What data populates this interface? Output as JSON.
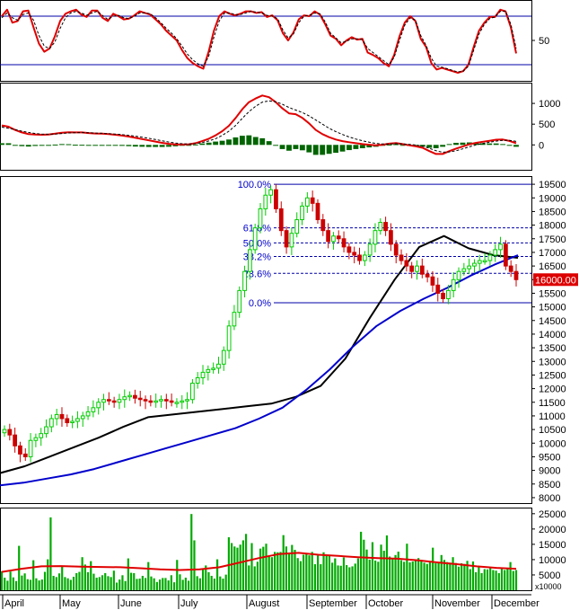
{
  "chart_data": {
    "type": "stock-technical",
    "x_axis": {
      "months": [
        "April",
        "May",
        "June",
        "July",
        "August",
        "September",
        "October",
        "November",
        "December"
      ]
    },
    "panels": {
      "stochastic": {
        "type": "line",
        "ylim": [
          0,
          100
        ],
        "tick_labels": [
          "50"
        ],
        "ref_levels": [
          80,
          20
        ],
        "series": [
          {
            "color": "#e00000",
            "values": [
              80,
              88,
              72,
              74,
              86,
              87,
              66,
              46,
              36,
              40,
              55,
              74,
              83,
              86,
              88,
              82,
              79,
              87,
              87,
              78,
              74,
              83,
              80,
              76,
              77,
              81,
              86,
              84,
              82,
              76,
              70,
              62,
              56,
              50,
              38,
              28,
              22,
              18,
              15,
              36,
              62,
              80,
              86,
              83,
              81,
              83,
              86,
              86,
              84,
              85,
              79,
              81,
              75,
              59,
              50,
              60,
              76,
              81,
              80,
              86,
              82,
              70,
              56,
              52,
              44,
              50,
              54,
              51,
              52,
              35,
              32,
              28,
              22,
              18,
              32,
              55,
              72,
              80,
              74,
              52,
              42,
              22,
              14,
              16,
              14,
              12,
              10,
              12,
              20,
              42,
              62,
              72,
              79,
              79,
              88,
              86,
              66,
              34
            ]
          },
          {
            "color": "#000000",
            "dash": "3,2",
            "values": [
              78,
              84,
              78,
              75,
              82,
              84,
              75,
              56,
              43,
              40,
              48,
              65,
              78,
              84,
              86,
              84,
              81,
              84,
              86,
              81,
              76,
              80,
              81,
              78,
              77,
              80,
              84,
              84,
              83,
              78,
              72,
              65,
              59,
              52,
              43,
              33,
              26,
              21,
              18,
              30,
              54,
              74,
              84,
              84,
              82,
              82,
              84,
              86,
              85,
              84,
              81,
              80,
              77,
              63,
              53,
              58,
              72,
              80,
              81,
              84,
              83,
              73,
              59,
              53,
              47,
              49,
              52,
              52,
              51,
              40,
              35,
              30,
              25,
              20,
              29,
              50,
              69,
              78,
              75,
              56,
              44,
              28,
              18,
              17,
              15,
              13,
              11,
              12,
              18,
              38,
              58,
              70,
              77,
              79,
              86,
              86,
              70,
              40
            ]
          }
        ]
      },
      "macd": {
        "type": "line+bar",
        "ylim": [
          -600,
          1500
        ],
        "tick_labels": [
          "1000",
          "500",
          "0"
        ],
        "series": [
          {
            "color": "#e00000",
            "values": [
              470,
              440,
              360,
              300,
              260,
              250,
              245,
              250,
              270,
              295,
              305,
              300,
              300,
              285,
              275,
              270,
              260,
              245,
              225,
              200,
              170,
              140,
              110,
              80,
              50,
              25,
              12,
              8,
              15,
              40,
              90,
              150,
              230,
              330,
              460,
              650,
              860,
              1030,
              1120,
              1190,
              1150,
              1030,
              880,
              760,
              740,
              650,
              520,
              360,
              260,
              185,
              130,
              90,
              65,
              40,
              20,
              5,
              -10,
              5,
              30,
              45,
              20,
              -10,
              -35,
              -70,
              -150,
              -220,
              -220,
              -150,
              -90,
              -40,
              15,
              50,
              75,
              100,
              125,
              130,
              95,
              40
            ]
          },
          {
            "color": "#000000",
            "dash": "3,2",
            "values": [
              430,
              400,
              370,
              330,
              300,
              275,
              260,
              258,
              262,
              275,
              288,
              295,
              297,
              292,
              285,
              278,
              270,
              260,
              248,
              230,
              210,
              185,
              160,
              130,
              100,
              70,
              45,
              28,
              22,
              30,
              55,
              95,
              150,
              230,
              330,
              470,
              640,
              800,
              930,
              1030,
              1060,
              1040,
              980,
              900,
              840,
              780,
              700,
              600,
              500,
              400,
              320,
              250,
              190,
              140,
              100,
              65,
              35,
              22,
              22,
              28,
              25,
              12,
              -5,
              -30,
              -80,
              -140,
              -175,
              -170,
              -140,
              -95,
              -45,
              0,
              35,
              65,
              90,
              110,
              110,
              85
            ]
          },
          {
            "type": "histogram",
            "color": "#006400",
            "values": [
              40,
              40,
              -10,
              -30,
              -40,
              -25,
              -15,
              -8,
              8,
              20,
              17,
              5,
              3,
              -7,
              -10,
              -8,
              -10,
              -15,
              -23,
              -30,
              -40,
              -45,
              -50,
              -50,
              -50,
              -45,
              -33,
              -20,
              -7,
              10,
              35,
              55,
              80,
              100,
              130,
              180,
              220,
              230,
              190,
              160,
              90,
              -10,
              -100,
              -140,
              -100,
              -130,
              -180,
              -240,
              -240,
              -215,
              -190,
              -160,
              -125,
              -100,
              -80,
              -60,
              -45,
              -17,
              8,
              17,
              -5,
              -22,
              -30,
              -40,
              -70,
              -80,
              -45,
              20,
              50,
              55,
              60,
              50,
              40,
              35,
              35,
              20,
              -15,
              -45
            ]
          }
        ]
      },
      "price": {
        "type": "candlestick",
        "ylim": [
          7800,
          19800
        ],
        "tick_labels": [
          "19500",
          "19000",
          "18500",
          "18000",
          "17500",
          "17000",
          "16500",
          "16000",
          "15500",
          "15000",
          "14500",
          "14000",
          "13500",
          "13000",
          "12500",
          "12000",
          "11500",
          "11000",
          "10500",
          "10000",
          "9500",
          "9000",
          "8500",
          "8000"
        ],
        "closes": [
          10500,
          10300,
          9900,
          9600,
          9500,
          10100,
          10200,
          10350,
          10600,
          10900,
          11050,
          10900,
          10750,
          10800,
          10900,
          11000,
          11150,
          11300,
          11500,
          11600,
          11550,
          11500,
          11600,
          11700,
          11750,
          11650,
          11600,
          11550,
          11500,
          11550,
          11600,
          11550,
          11500,
          11500,
          11550,
          11600,
          12200,
          12400,
          12600,
          12700,
          12750,
          12900,
          13400,
          14300,
          14800,
          15600,
          16300,
          17100,
          17900,
          18600,
          19100,
          19300,
          18600,
          17800,
          17200,
          17700,
          18200,
          18700,
          19000,
          18800,
          18200,
          17800,
          17400,
          17600,
          17500,
          17200,
          17000,
          16900,
          16700,
          16900,
          17300,
          17800,
          18100,
          17800,
          17300,
          16900,
          16700,
          16500,
          16300,
          16500,
          16200,
          16100,
          15800,
          15500,
          15300,
          15600,
          16000,
          16300,
          16400,
          16500,
          16600,
          16700,
          16700,
          16900,
          17100,
          17300,
          16500,
          16300,
          16000
        ],
        "up_color": "#00cc00",
        "down_color": "#cc0000",
        "current_price_label": "16000.00",
        "moving_averages": [
          {
            "color": "#000000",
            "values": [
              8900,
              9150,
              9500,
              9850,
              10200,
              10600,
              10950,
              11050,
              11150,
              11250,
              11350,
              11450,
              11700,
              12100,
              13100,
              14600,
              16000,
              17200,
              17600,
              17150,
              16900,
              16800
            ]
          },
          {
            "color": "#0000cc",
            "values": [
              8450,
              8550,
              8700,
              8850,
              9050,
              9300,
              9550,
              9800,
              10050,
              10300,
              10550,
              10900,
              11300,
              11950,
              12700,
              13550,
              14300,
              14850,
              15300,
              15700,
              16150,
              16550,
              16900
            ]
          }
        ],
        "fibonacci": {
          "levels": [
            {
              "label": "100.0%",
              "price": 19500,
              "style": "solid"
            },
            {
              "label": "61.8%",
              "price": 17900,
              "style": "dashed"
            },
            {
              "label": "50.0%",
              "price": 17350,
              "style": "dashed"
            },
            {
              "label": "38.2%",
              "price": 16850,
              "style": "dashed"
            },
            {
              "label": "23.6%",
              "price": 16230,
              "style": "dashed"
            },
            {
              "label": "0.0%",
              "price": 15150,
              "style": "solid"
            }
          ]
        }
      },
      "volume": {
        "type": "bar",
        "ylim": [
          0,
          27000
        ],
        "tick_labels": [
          "25000",
          "20000",
          "15000",
          "10000",
          "5000"
        ],
        "unit_label": "x10000",
        "color": "#00aa00",
        "values": [
          6200,
          4100,
          3100,
          6100,
          4200,
          3000,
          14500,
          4800,
          5500,
          3600,
          3400,
          9800,
          3900,
          3200,
          3500,
          6000,
          10100,
          23800,
          4700,
          4300,
          5500,
          7700,
          4300,
          3900,
          3400,
          4400,
          5600,
          6000,
          10800,
          8400,
          5900,
          9500,
          5400,
          4100,
          4300,
          4900,
          5600,
          4600,
          4300,
          6400,
          2500,
          3500,
          4900,
          3000,
          10400,
          5700,
          5600,
          3700,
          3800,
          4700,
          4000,
          9200,
          4500,
          3900,
          2700,
          3500,
          4000,
          4000,
          3200,
          4900,
          2600,
          9900,
          5200,
          3400,
          4100,
          3100,
          24900,
          16300,
          4600,
          3900,
          7200,
          8100,
          5900,
          4700,
          3800,
          10100,
          4500,
          3800,
          5100,
          17300,
          15400,
          14300,
          13900,
          14900,
          16300,
          18400,
          8100,
          15400,
          7800,
          9300,
          13600,
          14200,
          15200,
          11300,
          10800,
          12500,
          12400,
          12500,
          18000,
          14300,
          12200,
          14800,
          13200,
          10500,
          9500,
          11600,
          12000,
          11400,
          12500,
          8500,
          11300,
          8500,
          12400,
          11200,
          11300,
          9000,
          10400,
          8100,
          8000,
          10700,
          8200,
          7500,
          7800,
          8700,
          10400,
          19100,
          16500,
          13300,
          10000,
          15700,
          9700,
          9300,
          14900,
          12900,
          17900,
          11000,
          10500,
          11500,
          12600,
          9800,
          9300,
          15200,
          9100,
          9400,
          10100,
          10500,
          9900,
          9000,
          8600,
          9200,
          13900,
          8800,
          9000,
          11500,
          9900,
          9200,
          9000,
          10800,
          8900,
          7700,
          8800,
          8600,
          9600,
          6900,
          9400,
          5900,
          7500,
          5600,
          6900,
          6800,
          7300,
          6600,
          6400,
          5600,
          7000,
          6600,
          7100,
          9200,
          6300,
          6600
        ],
        "moving_average": {
          "color": "#e00000",
          "values": [
            6000,
            7000,
            7800,
            7900,
            7700,
            7600,
            7500,
            7200,
            6800,
            6600,
            6800,
            7500,
            9000,
            10500,
            11800,
            12200,
            11600,
            11200,
            10800,
            10500,
            10300,
            9800,
            9100,
            8500,
            7800,
            7300,
            7000
          ]
        }
      }
    }
  }
}
